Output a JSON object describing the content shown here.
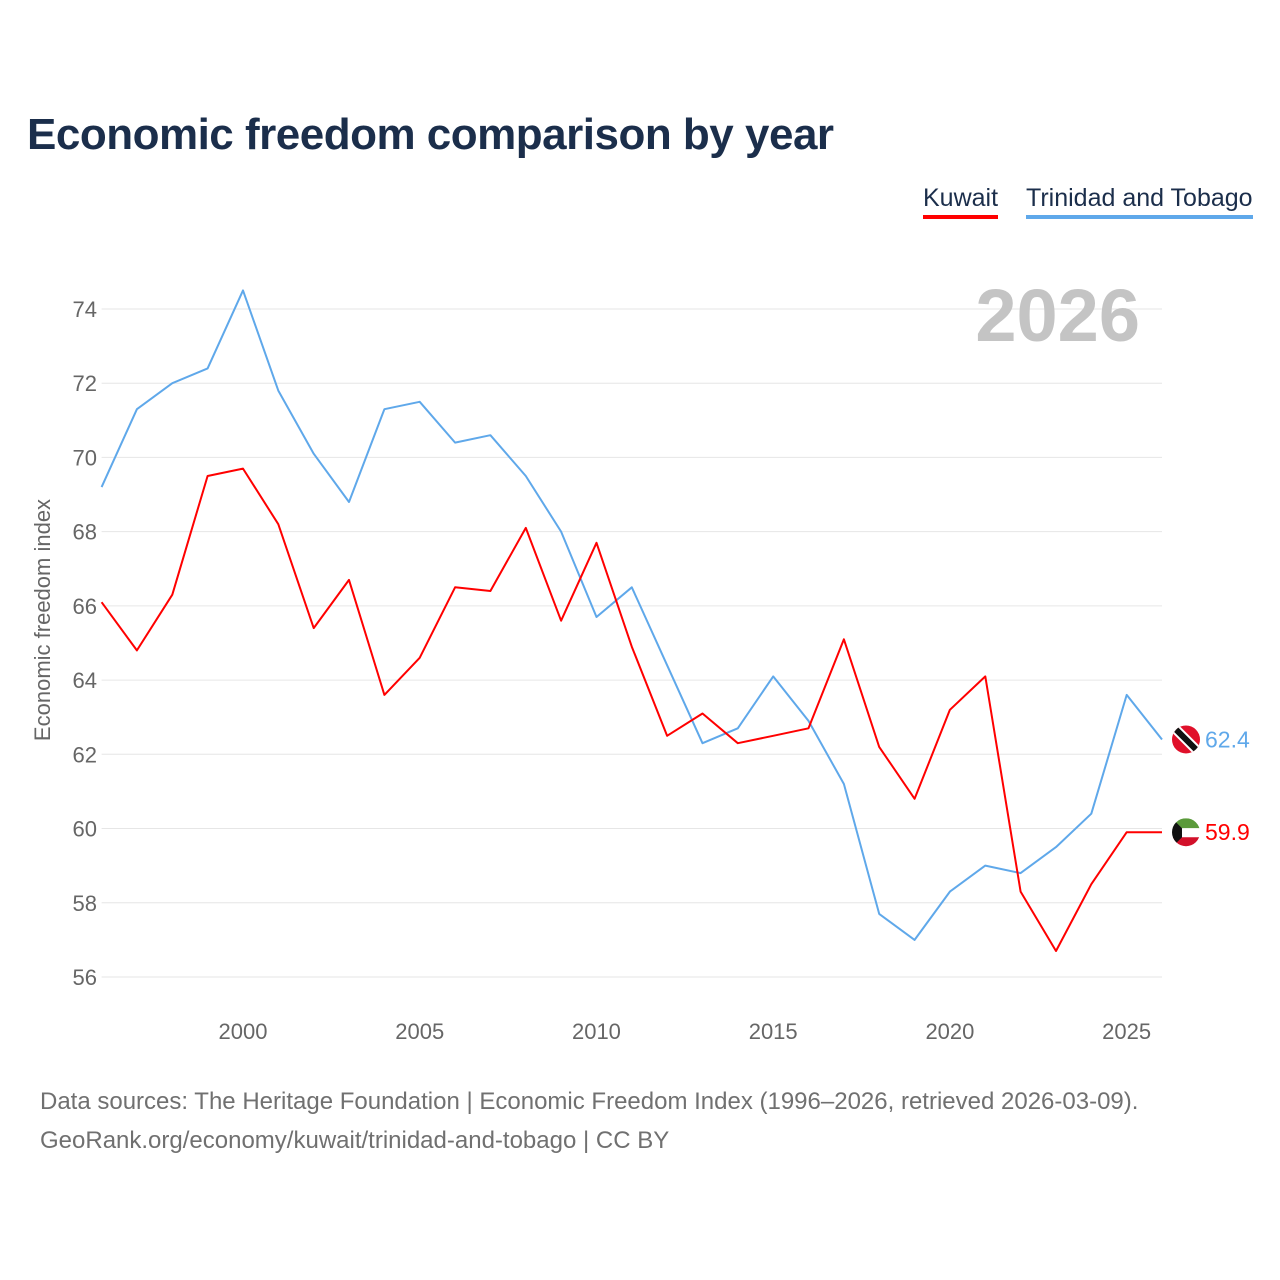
{
  "chart_data": {
    "type": "line",
    "title": "Economic freedom comparison by year",
    "xlabel": "",
    "ylabel": "Economic freedom index",
    "year_watermark": "2026",
    "x": [
      1996,
      1997,
      1998,
      1999,
      2000,
      2001,
      2002,
      2003,
      2004,
      2005,
      2006,
      2007,
      2008,
      2009,
      2010,
      2011,
      2012,
      2013,
      2014,
      2015,
      2016,
      2017,
      2018,
      2019,
      2020,
      2021,
      2022,
      2023,
      2024,
      2025,
      2026
    ],
    "xlim": [
      1996,
      2026
    ],
    "ylim": [
      54.9,
      75.6
    ],
    "xticks": [
      2000,
      2005,
      2010,
      2015,
      2020,
      2025
    ],
    "yticks": [
      56,
      58,
      60,
      62,
      64,
      66,
      68,
      70,
      72,
      74
    ],
    "grid": true,
    "legend_position": "top-right",
    "series": [
      {
        "name": "Kuwait",
        "color": "#ff0000",
        "end_label": "59.9",
        "values": [
          66.1,
          64.8,
          66.3,
          69.5,
          69.7,
          68.2,
          65.4,
          66.7,
          63.6,
          64.6,
          66.5,
          66.4,
          68.1,
          65.6,
          67.7,
          64.9,
          62.5,
          63.1,
          62.3,
          62.5,
          62.7,
          65.1,
          62.2,
          60.8,
          63.2,
          64.1,
          58.3,
          56.7,
          58.5,
          59.9,
          59.9
        ]
      },
      {
        "name": "Trinidad and Tobago",
        "color": "#5fa8ea",
        "end_label": "62.4",
        "values": [
          69.2,
          71.3,
          72.0,
          72.4,
          74.5,
          71.8,
          70.1,
          68.8,
          71.3,
          71.5,
          70.4,
          70.6,
          69.5,
          68.0,
          65.7,
          66.5,
          64.4,
          62.3,
          62.7,
          64.1,
          62.9,
          61.2,
          57.7,
          57.0,
          58.3,
          59.0,
          58.8,
          59.5,
          60.4,
          63.6,
          62.4
        ]
      }
    ]
  },
  "footer": {
    "line1": "Data sources: The Heritage Foundation | Economic Freedom Index (1996–2026, retrieved 2026-03-09).",
    "line2": "GeoRank.org/economy/kuwait/trinidad-and-tobago | CC BY"
  }
}
